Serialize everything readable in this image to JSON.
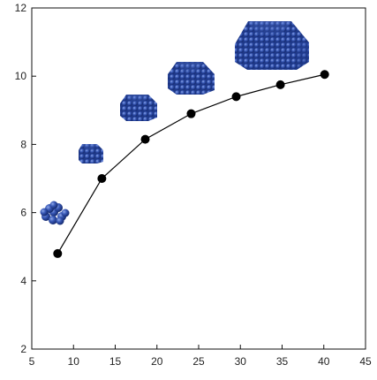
{
  "chart_data": {
    "type": "scatter",
    "title": "",
    "xlabel": "",
    "ylabel": "",
    "xlim": [
      5,
      45
    ],
    "ylim": [
      2,
      12
    ],
    "x_ticks": [
      5,
      10,
      15,
      20,
      25,
      30,
      35,
      40,
      45
    ],
    "y_ticks": [
      2,
      4,
      6,
      8,
      10,
      12
    ],
    "grid": false,
    "legend": "none",
    "series": [
      {
        "x": [
          8.1,
          13.4,
          18.6,
          24.1,
          29.5,
          34.8,
          40.1
        ],
        "y": [
          4.8,
          7.0,
          8.15,
          8.9,
          9.4,
          9.75,
          10.05
        ],
        "marker": "circle",
        "color": "#000000",
        "line": true
      }
    ],
    "annotations": [
      {
        "type": "image",
        "icon": "small-cluster-icon",
        "color": "#2a4a9a",
        "near_x": 8.1
      },
      {
        "type": "image",
        "icon": "cluster-size-2-icon",
        "color": "#2a4a9a",
        "near_x": 13.4
      },
      {
        "type": "image",
        "icon": "cluster-size-3-icon",
        "color": "#2a4a9a",
        "near_x": 18.6
      },
      {
        "type": "image",
        "icon": "cluster-size-4-icon",
        "color": "#2a4a9a",
        "near_x": 24.1
      },
      {
        "type": "image",
        "icon": "large-cluster-icon",
        "color": "#2a4a9a",
        "near_x": 34.8
      }
    ]
  }
}
